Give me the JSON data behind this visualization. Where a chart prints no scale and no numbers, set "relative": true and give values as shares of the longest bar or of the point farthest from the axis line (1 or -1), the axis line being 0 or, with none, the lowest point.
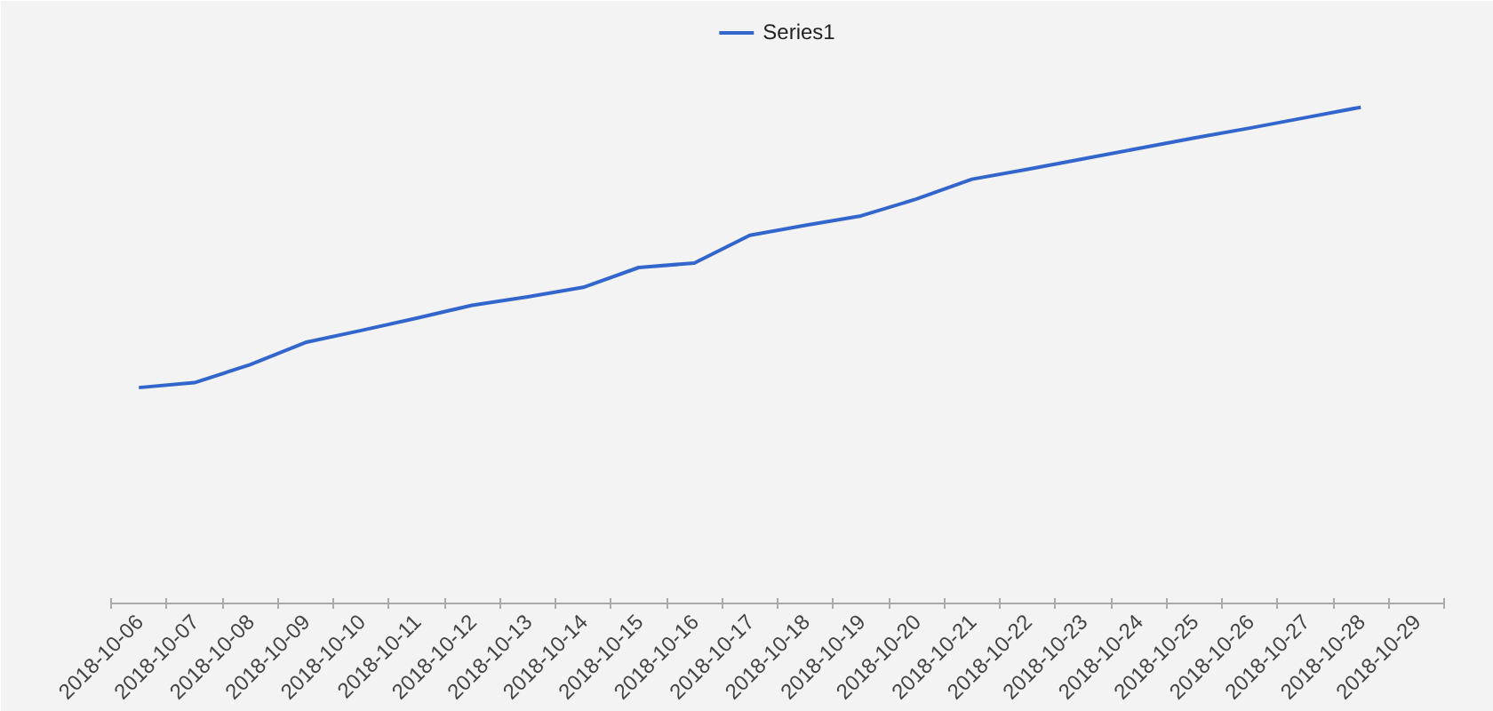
{
  "chart_data": {
    "type": "line",
    "relative": true,
    "legend": "top",
    "categories": [
      "2018-10-06",
      "2018-10-07",
      "2018-10-08",
      "2018-10-09",
      "2018-10-10",
      "2018-10-11",
      "2018-10-12",
      "2018-10-13",
      "2018-10-14",
      "2018-10-15",
      "2018-10-16",
      "2018-10-17",
      "2018-10-18",
      "2018-10-19",
      "2018-10-20",
      "2018-10-21",
      "2018-10-22",
      "2018-10-23",
      "2018-10-24",
      "2018-10-25",
      "2018-10-26",
      "2018-10-27",
      "2018-10-28",
      "2018-10-29"
    ],
    "series": [
      {
        "name": "Series1",
        "color": "#3366cc",
        "values": [
          0.435,
          0.445,
          0.481,
          0.526,
          0.55,
          0.575,
          0.601,
          0.618,
          0.637,
          0.677,
          0.686,
          0.742,
          0.762,
          0.781,
          0.815,
          0.855,
          0.875,
          0.896,
          0.917,
          0.938,
          0.958,
          0.979,
          1,
          null
        ]
      }
    ]
  }
}
